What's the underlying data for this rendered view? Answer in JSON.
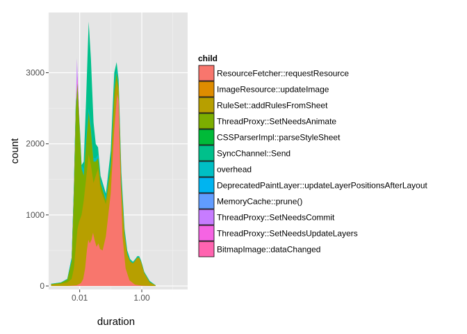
{
  "chart_data": {
    "type": "area",
    "subtype": "stacked density histogram",
    "xlabel": "duration",
    "ylabel": "count",
    "x_scale": "log10",
    "xlim": [
      0.001,
      30
    ],
    "ylim": [
      0,
      3700
    ],
    "x_ticks": [
      {
        "value": 0.01,
        "label": "0.01"
      },
      {
        "value": 1,
        "label": "1.00"
      }
    ],
    "y_ticks": [
      {
        "value": 0,
        "label": "0"
      },
      {
        "value": 1000,
        "label": "1000"
      },
      {
        "value": 2000,
        "label": "2000"
      },
      {
        "value": 3000,
        "label": "3000"
      }
    ],
    "grid": true,
    "legend_position": "right",
    "legend": {
      "title": "child",
      "entries": [
        {
          "label": "ResourceFetcher::requestResource",
          "color": "#F8766D"
        },
        {
          "label": "ImageResource::updateImage",
          "color": "#DE8C00"
        },
        {
          "label": "RuleSet::addRulesFromSheet",
          "color": "#B79F00"
        },
        {
          "label": "ThreadProxy::SetNeedsAnimate",
          "color": "#7CAE00"
        },
        {
          "label": "CSSParserImpl::parseStyleSheet",
          "color": "#00BA38"
        },
        {
          "label": "SyncChannel::Send",
          "color": "#00C08B"
        },
        {
          "label": "overhead",
          "color": "#00BFC4"
        },
        {
          "label": "DeprecatedPaintLayer::updateLayerPositionsAfterLayout",
          "color": "#00B4F0"
        },
        {
          "label": "MemoryCache::prune()",
          "color": "#619CFF"
        },
        {
          "label": "ThreadProxy::SetNeedsCommit",
          "color": "#C77CFF"
        },
        {
          "label": "ThreadProxy::SetNeedsUpdateLayers",
          "color": "#F564E3"
        },
        {
          "label": "BitmapImage::dataChanged",
          "color": "#FF64B0"
        }
      ]
    },
    "series": [
      {
        "label": "SyncChannel::Send",
        "color": "#00C08B",
        "points": [
          [
            0.0012,
            30
          ],
          [
            0.0025,
            50
          ],
          [
            0.004,
            100
          ],
          [
            0.0055,
            400
          ],
          [
            0.0065,
            1400
          ],
          [
            0.0075,
            2600
          ],
          [
            0.0085,
            2750
          ],
          [
            0.0095,
            2300
          ],
          [
            0.0115,
            1700
          ],
          [
            0.0135,
            1750
          ],
          [
            0.016,
            2600
          ],
          [
            0.0195,
            3720
          ],
          [
            0.023,
            3200
          ],
          [
            0.028,
            2300
          ],
          [
            0.033,
            2000
          ],
          [
            0.039,
            1950
          ],
          [
            0.047,
            1550
          ],
          [
            0.07,
            1300
          ],
          [
            0.1,
            1900
          ],
          [
            0.13,
            3000
          ],
          [
            0.155,
            3150
          ],
          [
            0.18,
            2900
          ],
          [
            0.22,
            1600
          ],
          [
            0.28,
            800
          ],
          [
            0.34,
            500
          ],
          [
            0.42,
            380
          ],
          [
            0.52,
            340
          ],
          [
            0.62,
            380
          ],
          [
            0.72,
            420
          ],
          [
            0.82,
            420
          ],
          [
            0.95,
            360
          ],
          [
            1.2,
            200
          ],
          [
            1.8,
            70
          ],
          [
            2.8,
            10
          ]
        ]
      },
      {
        "label": "overhead",
        "color": "#00BFC4",
        "points": [
          [
            0.0012,
            30
          ],
          [
            0.0025,
            50
          ],
          [
            0.004,
            100
          ],
          [
            0.0055,
            400
          ],
          [
            0.0065,
            1400
          ],
          [
            0.0075,
            2600
          ],
          [
            0.0085,
            2950
          ],
          [
            0.0095,
            2500
          ],
          [
            0.0115,
            1700
          ],
          [
            0.0135,
            1650
          ],
          [
            0.016,
            2100
          ],
          [
            0.0195,
            2500
          ],
          [
            0.023,
            2300
          ],
          [
            0.028,
            1800
          ],
          [
            0.033,
            1800
          ],
          [
            0.039,
            1850
          ],
          [
            0.047,
            1500
          ],
          [
            0.07,
            1250
          ],
          [
            0.1,
            1750
          ],
          [
            0.13,
            2800
          ],
          [
            0.155,
            3050
          ],
          [
            0.18,
            2850
          ],
          [
            0.22,
            1500
          ],
          [
            0.28,
            750
          ],
          [
            0.34,
            470
          ],
          [
            0.42,
            360
          ],
          [
            0.52,
            330
          ],
          [
            0.62,
            370
          ],
          [
            0.72,
            410
          ],
          [
            0.82,
            410
          ],
          [
            0.95,
            350
          ],
          [
            1.2,
            190
          ],
          [
            1.8,
            60
          ],
          [
            2.8,
            10
          ]
        ]
      },
      {
        "label": "ThreadProxy::SetNeedsCommit",
        "color": "#C77CFF",
        "points": [
          [
            0.0055,
            350
          ],
          [
            0.0065,
            1300
          ],
          [
            0.0075,
            2500
          ],
          [
            0.0082,
            3200
          ],
          [
            0.009,
            2700
          ],
          [
            0.0105,
            1700
          ],
          [
            0.012,
            1200
          ],
          [
            0.014,
            1000
          ],
          [
            0.017,
            900
          ]
        ]
      },
      {
        "label": "ThreadProxy::SetNeedsUpdateLayers",
        "color": "#F564E3",
        "points": [
          [
            0.0055,
            340
          ],
          [
            0.0065,
            1280
          ],
          [
            0.0075,
            2450
          ],
          [
            0.0085,
            2950
          ],
          [
            0.0095,
            2500
          ],
          [
            0.0115,
            1450
          ],
          [
            0.0135,
            1050
          ],
          [
            0.016,
            900
          ]
        ]
      },
      {
        "label": "ThreadProxy::SetNeedsAnimate",
        "color": "#7CAE00",
        "points": [
          [
            0.0012,
            25
          ],
          [
            0.0025,
            45
          ],
          [
            0.004,
            90
          ],
          [
            0.0055,
            350
          ],
          [
            0.0065,
            1300
          ],
          [
            0.0075,
            2500
          ],
          [
            0.0085,
            2850
          ],
          [
            0.0095,
            2400
          ],
          [
            0.0115,
            1650
          ],
          [
            0.0135,
            1550
          ],
          [
            0.016,
            2000
          ],
          [
            0.0195,
            2450
          ],
          [
            0.023,
            2200
          ],
          [
            0.028,
            1750
          ],
          [
            0.033,
            1750
          ],
          [
            0.039,
            1800
          ],
          [
            0.047,
            1450
          ],
          [
            0.07,
            1200
          ],
          [
            0.1,
            1700
          ],
          [
            0.13,
            2750
          ],
          [
            0.155,
            3000
          ],
          [
            0.18,
            2800
          ],
          [
            0.22,
            1450
          ],
          [
            0.28,
            720
          ],
          [
            0.34,
            450
          ],
          [
            0.42,
            350
          ],
          [
            0.52,
            320
          ],
          [
            0.62,
            360
          ],
          [
            0.72,
            400
          ],
          [
            0.82,
            400
          ],
          [
            0.95,
            340
          ],
          [
            1.2,
            185
          ],
          [
            1.8,
            55
          ],
          [
            2.8,
            8
          ]
        ]
      },
      {
        "label": "RuleSet::addRulesFromSheet",
        "color": "#B79F00",
        "points": [
          [
            0.0012,
            20
          ],
          [
            0.0025,
            30
          ],
          [
            0.004,
            50
          ],
          [
            0.0055,
            100
          ],
          [
            0.0065,
            250
          ],
          [
            0.0075,
            550
          ],
          [
            0.0085,
            800
          ],
          [
            0.0095,
            900
          ],
          [
            0.0115,
            1000
          ],
          [
            0.0135,
            1200
          ],
          [
            0.016,
            1500
          ],
          [
            0.0195,
            1850
          ],
          [
            0.023,
            1700
          ],
          [
            0.028,
            1450
          ],
          [
            0.033,
            1550
          ],
          [
            0.039,
            1650
          ],
          [
            0.047,
            1350
          ],
          [
            0.07,
            1150
          ],
          [
            0.1,
            1600
          ],
          [
            0.13,
            2600
          ],
          [
            0.155,
            2900
          ],
          [
            0.18,
            2750
          ],
          [
            0.22,
            1400
          ],
          [
            0.28,
            700
          ],
          [
            0.34,
            440
          ],
          [
            0.42,
            345
          ],
          [
            0.52,
            315
          ],
          [
            0.62,
            355
          ],
          [
            0.72,
            395
          ],
          [
            0.82,
            395
          ],
          [
            0.95,
            335
          ],
          [
            1.2,
            180
          ],
          [
            1.8,
            50
          ],
          [
            2.8,
            8
          ]
        ]
      },
      {
        "label": "ResourceFetcher::requestResource",
        "color": "#F8766D",
        "points": [
          [
            0.004,
            0
          ],
          [
            0.008,
            10
          ],
          [
            0.011,
            40
          ],
          [
            0.013,
            100
          ],
          [
            0.015,
            250
          ],
          [
            0.017,
            500
          ],
          [
            0.019,
            650
          ],
          [
            0.021,
            600
          ],
          [
            0.024,
            650
          ],
          [
            0.027,
            750
          ],
          [
            0.03,
            650
          ],
          [
            0.035,
            550
          ],
          [
            0.04,
            600
          ],
          [
            0.045,
            520
          ],
          [
            0.055,
            500
          ],
          [
            0.07,
            700
          ],
          [
            0.1,
            1300
          ],
          [
            0.13,
            2200
          ],
          [
            0.16,
            2700
          ],
          [
            0.18,
            2600
          ],
          [
            0.2,
            1700
          ],
          [
            0.24,
            700
          ],
          [
            0.3,
            250
          ],
          [
            0.4,
            80
          ],
          [
            0.6,
            20
          ],
          [
            1.0,
            5
          ],
          [
            2.0,
            0
          ]
        ]
      }
    ]
  }
}
